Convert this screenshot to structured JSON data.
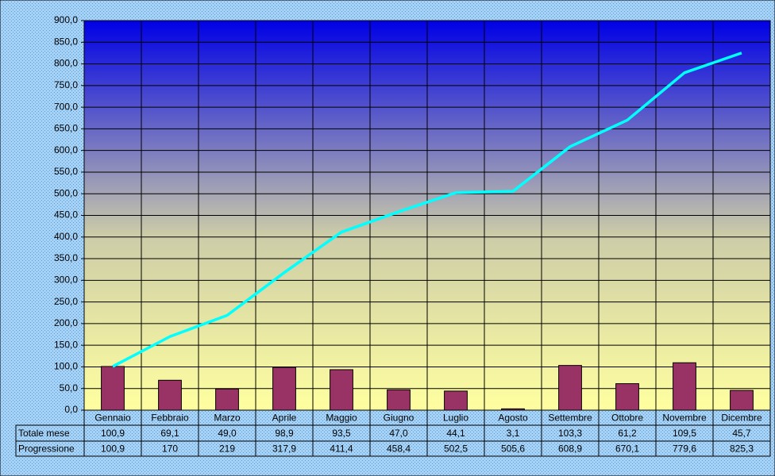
{
  "chart_data": {
    "type": "bar",
    "categories": [
      "Gennaio",
      "Febbraio",
      "Marzo",
      "Aprile",
      "Maggio",
      "Giugno",
      "Luglio",
      "Agosto",
      "Settembre",
      "Ottobre",
      "Novembre",
      "Dicembre"
    ],
    "series": [
      {
        "name": "Totale mese",
        "type": "bar",
        "color": "#993366",
        "values": [
          100.9,
          69.1,
          49.0,
          98.9,
          93.5,
          47.0,
          44.1,
          3.1,
          103.3,
          61.2,
          109.5,
          45.7
        ],
        "value_labels": [
          "100,9",
          "69,1",
          "49,0",
          "98,9",
          "93,5",
          "47,0",
          "44,1",
          "3,1",
          "103,3",
          "61,2",
          "109,5",
          "45,7"
        ]
      },
      {
        "name": "Progressione",
        "type": "line",
        "color": "#00ffff",
        "values": [
          100.9,
          170,
          219,
          317.9,
          411.4,
          458.4,
          502.5,
          505.6,
          608.9,
          670.1,
          779.6,
          825.3
        ],
        "value_labels": [
          "100,9",
          "170",
          "219",
          "317,9",
          "411,4",
          "458,4",
          "502,5",
          "505,6",
          "608,9",
          "670,1",
          "779,6",
          "825,3"
        ]
      }
    ],
    "ylim": [
      0,
      900
    ],
    "yticks": [
      {
        "value": 0,
        "label": "0,0"
      },
      {
        "value": 50,
        "label": "50,0"
      },
      {
        "value": 100,
        "label": "100,0"
      },
      {
        "value": 150,
        "label": "150,0"
      },
      {
        "value": 200,
        "label": "200,0"
      },
      {
        "value": 250,
        "label": "250,0"
      },
      {
        "value": 300,
        "label": "300,0"
      },
      {
        "value": 350,
        "label": "350,0"
      },
      {
        "value": 400,
        "label": "400,0"
      },
      {
        "value": 450,
        "label": "450,0"
      },
      {
        "value": 500,
        "label": "500,0"
      },
      {
        "value": 550,
        "label": "550,0"
      },
      {
        "value": 600,
        "label": "600,0"
      },
      {
        "value": 650,
        "label": "650,0"
      },
      {
        "value": 700,
        "label": "700,0"
      },
      {
        "value": 750,
        "label": "750,0"
      },
      {
        "value": 800,
        "label": "800,0"
      },
      {
        "value": 850,
        "label": "850,0"
      },
      {
        "value": 900,
        "label": "900,0"
      }
    ],
    "grid": true
  }
}
